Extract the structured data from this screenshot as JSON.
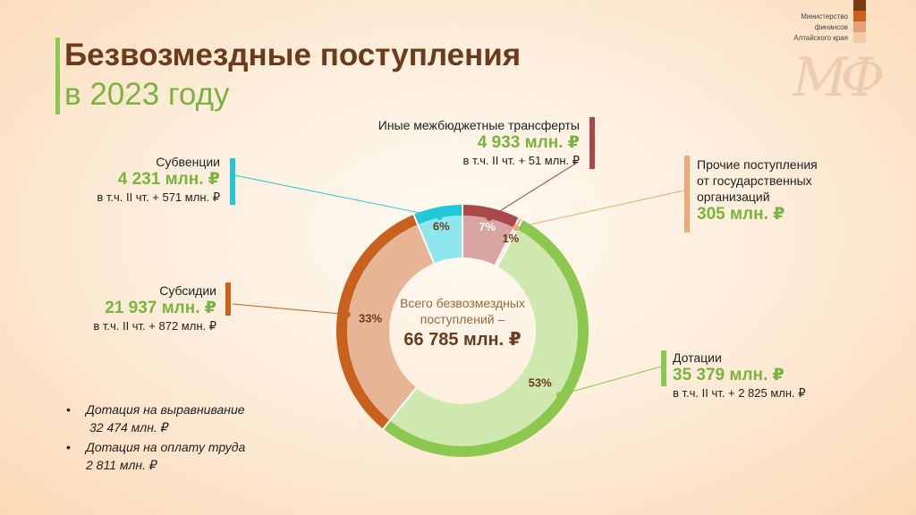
{
  "title_line1": "Безвозмездные поступления",
  "title_line2": "в 2023 году",
  "ministry": [
    "Министерство",
    "финансов",
    "Алтайского края"
  ],
  "colors": {
    "dotatsii": "#8cc850",
    "dotatsii_inner": "#cfe8b0",
    "subsidii": "#c8601e",
    "subsidii_inner": "#e8b496",
    "subventsii": "#22c8d8",
    "subventsii_inner": "#8ee6ee",
    "inye": "#a84848",
    "inye_inner": "#d8a4a4",
    "prochie": "#f0a878",
    "prochie_inner": "#f8d2b8"
  },
  "center": {
    "label": "Всего безвозмездных поступлений –",
    "value": "66 785 млн. ₽"
  },
  "callouts": {
    "inye": {
      "name": "Иные межбюджетные трансферты",
      "amount": "4 933 млн. ₽",
      "delta": "в т.ч. II чт. + 51 млн. ₽"
    },
    "subventsii": {
      "name": "Субвенции",
      "amount": "4 231 млн. ₽",
      "delta": "в т.ч. II чт. + 571 млн. ₽"
    },
    "subsidii": {
      "name": "Субсидии",
      "amount": "21 937 млн. ₽",
      "delta": "в т.ч. II чт. + 872 млн. ₽"
    },
    "prochie": {
      "name_lines": [
        "Прочие поступления",
        "от государственных",
        "организаций"
      ],
      "amount": "305 млн. ₽"
    },
    "dotatsii": {
      "name": "Дотации",
      "amount": "35 379 млн. ₽",
      "delta": "в т.ч. II чт. + 2 825 млн. ₽"
    }
  },
  "notes": [
    {
      "label": "Дотация на выравнивание",
      "value": "32 474 млн. ₽"
    },
    {
      "label": "Дотация на оплату труда",
      "value": "2 811 млн. ₽"
    }
  ],
  "chart_data": {
    "type": "pie",
    "title": "Безвозмездные поступления в 2023 году",
    "unit": "млн. ₽",
    "categories": [
      "Иные межбюджетные трансферты",
      "Прочие поступления от государственных организаций",
      "Дотации",
      "Субсидии",
      "Субвенции"
    ],
    "values": [
      4933,
      305,
      35379,
      21937,
      4231
    ],
    "percent_labels": [
      "7%",
      "1%",
      "53%",
      "33%",
      "6%"
    ],
    "total": 66785
  }
}
